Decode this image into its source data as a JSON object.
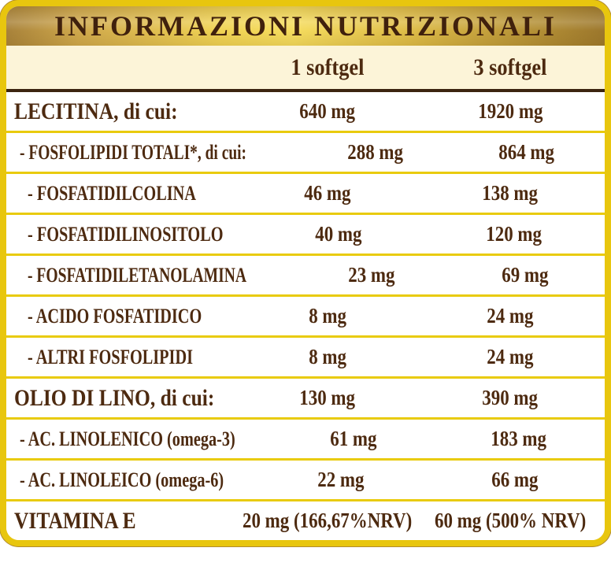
{
  "title": "INFORMAZIONI NUTRIZIONALI",
  "columns": [
    "1 softgel",
    "3 softgel"
  ],
  "rows": [
    {
      "label": "LECITINA, di cui:",
      "level": 0,
      "per1": "640 mg",
      "per3": "1920 mg"
    },
    {
      "label": "- FOSFOLIPIDI TOTALI*, di cui:",
      "level": 1,
      "per1": "288 mg",
      "per3": "864 mg"
    },
    {
      "label": "- FOSFATIDILCOLINA",
      "level": 2,
      "per1": "46 mg",
      "per3": "138 mg"
    },
    {
      "label": "- FOSFATIDILINOSITOLO",
      "level": 2,
      "per1": "40 mg",
      "per3": "120 mg"
    },
    {
      "label": "- FOSFATIDILETANOLAMINA",
      "level": 2,
      "per1": "23 mg",
      "per3": "69 mg"
    },
    {
      "label": "- ACIDO FOSFATIDICO",
      "level": 2,
      "per1": "8 mg",
      "per3": "24 mg"
    },
    {
      "label": "- ALTRI FOSFOLIPIDI",
      "level": 2,
      "per1": "8 mg",
      "per3": "24 mg"
    },
    {
      "label": "OLIO DI LINO, di cui:",
      "level": 0,
      "per1": "130 mg",
      "per3": "390 mg"
    },
    {
      "label": "- AC. LINOLENICO (omega-3)",
      "level": 1,
      "per1": "61 mg",
      "per3": "183 mg"
    },
    {
      "label": "- AC. LINOLEICO (omega-6)",
      "level": 1,
      "per1": "22 mg",
      "per3": "66 mg"
    },
    {
      "label": "VITAMINA E",
      "level": 0,
      "per1": "20 mg (166,67%NRV)",
      "per3": "60 mg (500% NRV)"
    }
  ],
  "colors": {
    "border_gold": "#e8c60e",
    "border_edge": "#b18b2e",
    "separator_yellow": "#e9cb0e",
    "rule_dark": "#3c2410",
    "cream": "#fcf4d8",
    "title_brown": "#40210d",
    "text_brown": "#4d2a10",
    "band_1": "#a8823a",
    "band_2": "#cfa84c",
    "band_3": "#f0d354",
    "band_4": "#f5dc5e",
    "band_5": "#ddbb47",
    "band_6": "#9c772c"
  }
}
